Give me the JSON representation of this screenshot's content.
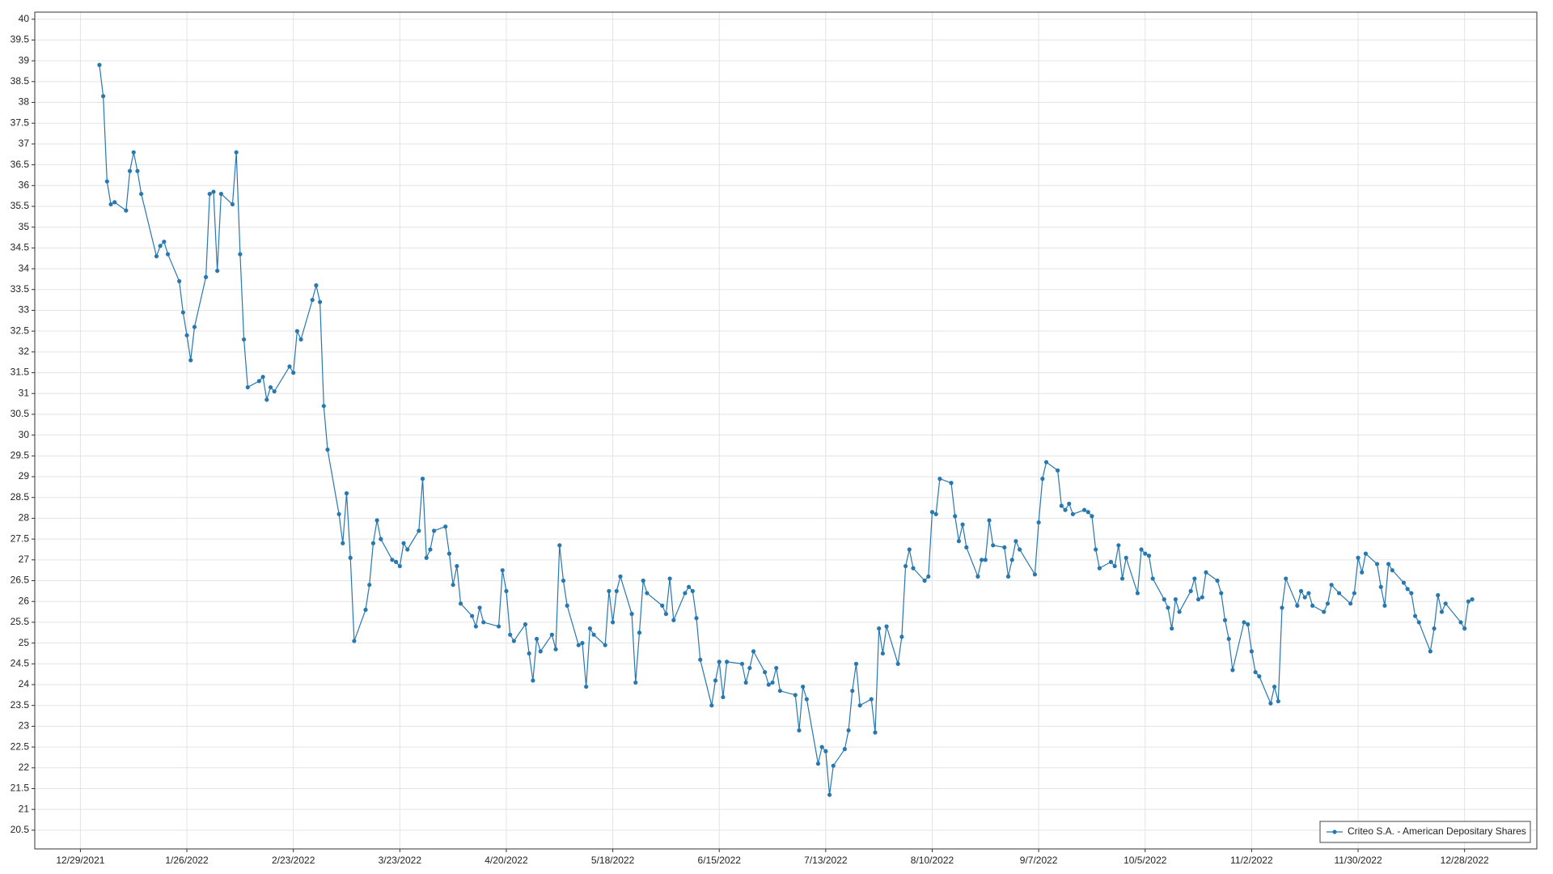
{
  "chart_data": {
    "type": "line",
    "x": [
      "1/3/2022",
      "1/4/2022",
      "1/5/2022",
      "1/6/2022",
      "1/7/2022",
      "1/10/2022",
      "1/11/2022",
      "1/12/2022",
      "1/13/2022",
      "1/14/2022",
      "1/18/2022",
      "1/19/2022",
      "1/20/2022",
      "1/21/2022",
      "1/24/2022",
      "1/25/2022",
      "1/26/2022",
      "1/27/2022",
      "1/28/2022",
      "1/31/2022",
      "2/1/2022",
      "2/2/2022",
      "2/3/2022",
      "2/4/2022",
      "2/7/2022",
      "2/8/2022",
      "2/9/2022",
      "2/10/2022",
      "2/11/2022",
      "2/14/2022",
      "2/15/2022",
      "2/16/2022",
      "2/17/2022",
      "2/18/2022",
      "2/22/2022",
      "2/23/2022",
      "2/24/2022",
      "2/25/2022",
      "2/28/2022",
      "3/1/2022",
      "3/2/2022",
      "3/3/2022",
      "3/4/2022",
      "3/7/2022",
      "3/8/2022",
      "3/9/2022",
      "3/10/2022",
      "3/11/2022",
      "3/14/2022",
      "3/15/2022",
      "3/16/2022",
      "3/17/2022",
      "3/18/2022",
      "3/21/2022",
      "3/22/2022",
      "3/23/2022",
      "3/24/2022",
      "3/25/2022",
      "3/28/2022",
      "3/29/2022",
      "3/30/2022",
      "3/31/2022",
      "4/1/2022",
      "4/4/2022",
      "4/5/2022",
      "4/6/2022",
      "4/7/2022",
      "4/8/2022",
      "4/11/2022",
      "4/12/2022",
      "4/13/2022",
      "4/14/2022",
      "4/18/2022",
      "4/19/2022",
      "4/20/2022",
      "4/21/2022",
      "4/22/2022",
      "4/25/2022",
      "4/26/2022",
      "4/27/2022",
      "4/28/2022",
      "4/29/2022",
      "5/2/2022",
      "5/3/2022",
      "5/4/2022",
      "5/5/2022",
      "5/6/2022",
      "5/9/2022",
      "5/10/2022",
      "5/11/2022",
      "5/12/2022",
      "5/13/2022",
      "5/16/2022",
      "5/17/2022",
      "5/18/2022",
      "5/19/2022",
      "5/20/2022",
      "5/23/2022",
      "5/24/2022",
      "5/25/2022",
      "5/26/2022",
      "5/27/2022",
      "5/31/2022",
      "6/1/2022",
      "6/2/2022",
      "6/3/2022",
      "6/6/2022",
      "6/7/2022",
      "6/8/2022",
      "6/9/2022",
      "6/10/2022",
      "6/13/2022",
      "6/14/2022",
      "6/15/2022",
      "6/16/2022",
      "6/17/2022",
      "6/21/2022",
      "6/22/2022",
      "6/23/2022",
      "6/24/2022",
      "6/27/2022",
      "6/28/2022",
      "6/29/2022",
      "6/30/2022",
      "7/1/2022",
      "7/5/2022",
      "7/6/2022",
      "7/7/2022",
      "7/8/2022",
      "7/11/2022",
      "7/12/2022",
      "7/13/2022",
      "7/14/2022",
      "7/15/2022",
      "7/18/2022",
      "7/19/2022",
      "7/20/2022",
      "7/21/2022",
      "7/22/2022",
      "7/25/2022",
      "7/26/2022",
      "7/27/2022",
      "7/28/2022",
      "7/29/2022",
      "8/1/2022",
      "8/2/2022",
      "8/3/2022",
      "8/4/2022",
      "8/5/2022",
      "8/8/2022",
      "8/9/2022",
      "8/10/2022",
      "8/11/2022",
      "8/12/2022",
      "8/15/2022",
      "8/16/2022",
      "8/17/2022",
      "8/18/2022",
      "8/19/2022",
      "8/22/2022",
      "8/23/2022",
      "8/24/2022",
      "8/25/2022",
      "8/26/2022",
      "8/29/2022",
      "8/30/2022",
      "8/31/2022",
      "9/1/2022",
      "9/2/2022",
      "9/6/2022",
      "9/7/2022",
      "9/8/2022",
      "9/9/2022",
      "9/12/2022",
      "9/13/2022",
      "9/14/2022",
      "9/15/2022",
      "9/16/2022",
      "9/19/2022",
      "9/20/2022",
      "9/21/2022",
      "9/22/2022",
      "9/23/2022",
      "9/26/2022",
      "9/27/2022",
      "9/28/2022",
      "9/29/2022",
      "9/30/2022",
      "10/3/2022",
      "10/4/2022",
      "10/5/2022",
      "10/6/2022",
      "10/7/2022",
      "10/10/2022",
      "10/11/2022",
      "10/12/2022",
      "10/13/2022",
      "10/14/2022",
      "10/17/2022",
      "10/18/2022",
      "10/19/2022",
      "10/20/2022",
      "10/21/2022",
      "10/24/2022",
      "10/25/2022",
      "10/26/2022",
      "10/27/2022",
      "10/28/2022",
      "10/31/2022",
      "11/1/2022",
      "11/2/2022",
      "11/3/2022",
      "11/4/2022",
      "11/7/2022",
      "11/8/2022",
      "11/9/2022",
      "11/10/2022",
      "11/11/2022",
      "11/14/2022",
      "11/15/2022",
      "11/16/2022",
      "11/17/2022",
      "11/18/2022",
      "11/21/2022",
      "11/22/2022",
      "11/23/2022",
      "11/25/2022",
      "11/28/2022",
      "11/29/2022",
      "11/30/2022",
      "12/1/2022",
      "12/2/2022",
      "12/5/2022",
      "12/6/2022",
      "12/7/2022",
      "12/8/2022",
      "12/9/2022",
      "12/12/2022",
      "12/13/2022",
      "12/14/2022",
      "12/15/2022",
      "12/16/2022",
      "12/19/2022",
      "12/20/2022",
      "12/21/2022",
      "12/22/2022",
      "12/23/2022",
      "12/27/2022",
      "12/28/2022",
      "12/29/2022",
      "12/30/2022"
    ],
    "series": [
      {
        "name": "Criteo S.A. - American Depositary Shares",
        "color": "#2878b0",
        "values": [
          38.9,
          38.15,
          36.1,
          35.55,
          35.6,
          35.4,
          36.35,
          36.8,
          36.35,
          35.8,
          34.3,
          34.55,
          34.65,
          34.35,
          33.7,
          32.95,
          32.4,
          31.8,
          32.6,
          33.8,
          35.8,
          35.85,
          33.95,
          35.8,
          35.55,
          36.8,
          34.35,
          32.3,
          31.15,
          31.3,
          31.4,
          30.85,
          31.15,
          31.05,
          31.65,
          31.5,
          32.5,
          32.3,
          33.25,
          33.6,
          33.2,
          30.7,
          29.65,
          28.1,
          27.4,
          28.6,
          27.05,
          25.05,
          25.8,
          26.4,
          27.4,
          27.95,
          27.5,
          27.0,
          26.95,
          26.85,
          27.4,
          27.25,
          27.7,
          28.95,
          27.05,
          27.25,
          27.7,
          27.8,
          27.15,
          26.4,
          26.85,
          25.95,
          25.65,
          25.4,
          25.85,
          25.5,
          25.4,
          26.75,
          26.25,
          25.2,
          25.05,
          25.45,
          24.75,
          24.1,
          25.1,
          24.8,
          25.2,
          24.85,
          27.35,
          26.5,
          25.9,
          24.95,
          25.0,
          23.95,
          25.35,
          25.2,
          24.95,
          26.25,
          25.5,
          26.25,
          26.6,
          25.7,
          24.05,
          25.25,
          26.5,
          26.2,
          25.9,
          25.7,
          26.55,
          25.55,
          26.2,
          26.35,
          26.25,
          25.6,
          24.6,
          23.5,
          24.1,
          24.55,
          23.7,
          24.55,
          24.5,
          24.05,
          24.4,
          24.8,
          24.3,
          24.0,
          24.05,
          24.4,
          23.85,
          23.75,
          22.9,
          23.95,
          23.65,
          22.1,
          22.5,
          22.4,
          21.35,
          22.05,
          22.45,
          22.9,
          23.85,
          24.5,
          23.5,
          23.65,
          22.85,
          25.35,
          24.75,
          25.4,
          24.5,
          25.15,
          26.85,
          27.25,
          26.8,
          26.5,
          26.6,
          28.15,
          28.1,
          28.95,
          28.85,
          28.05,
          27.45,
          27.85,
          27.3,
          26.6,
          27.0,
          27.0,
          27.95,
          27.35,
          27.3,
          26.6,
          27.0,
          27.45,
          27.25,
          26.65,
          27.9,
          28.95,
          29.35,
          29.15,
          28.3,
          28.2,
          28.35,
          28.1,
          28.2,
          28.15,
          28.05,
          27.25,
          26.8,
          26.95,
          26.85,
          27.35,
          26.55,
          27.05,
          26.2,
          27.25,
          27.15,
          27.1,
          26.55,
          26.05,
          25.85,
          25.35,
          26.05,
          25.75,
          26.25,
          26.55,
          26.05,
          26.1,
          26.7,
          26.5,
          26.2,
          25.55,
          25.1,
          24.35,
          25.5,
          25.45,
          24.8,
          24.3,
          24.2,
          23.55,
          23.95,
          23.6,
          25.85,
          26.55,
          25.9,
          26.25,
          26.1,
          26.2,
          25.9,
          25.75,
          25.95,
          26.4,
          26.2,
          25.95,
          26.2,
          27.05,
          26.7,
          27.15,
          26.9,
          26.35,
          25.9,
          26.9,
          26.75,
          26.45,
          26.3,
          26.2,
          25.65,
          25.5,
          24.8,
          25.35,
          26.15,
          25.75,
          25.95,
          25.5,
          25.35,
          26.0,
          26.05
        ]
      }
    ],
    "xlim": [
      "12/17/2021",
      "1/16/2023"
    ],
    "xticks": [
      "12/29/2021",
      "1/26/2022",
      "2/23/2022",
      "3/23/2022",
      "4/20/2022",
      "5/18/2022",
      "6/15/2022",
      "7/13/2022",
      "8/10/2022",
      "9/7/2022",
      "10/5/2022",
      "11/2/2022",
      "11/30/2022",
      "12/28/2022"
    ],
    "ylim": [
      20.05,
      40.17
    ],
    "yticks": [
      20.5,
      21,
      21.5,
      22,
      22.5,
      23,
      23.5,
      24,
      24.5,
      25,
      25.5,
      26,
      26.5,
      27,
      27.5,
      28,
      28.5,
      29,
      29.5,
      30,
      30.5,
      31,
      31.5,
      32,
      32.5,
      33,
      33.5,
      34,
      34.5,
      35,
      35.5,
      36,
      36.5,
      37,
      37.5,
      38,
      38.5,
      39,
      39.5,
      40
    ],
    "grid": true,
    "legend": "lower right"
  }
}
